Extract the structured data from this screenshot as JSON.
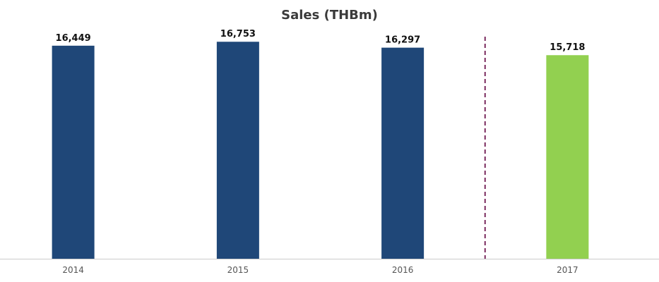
{
  "chart_data": {
    "type": "bar",
    "title": "Sales (THBm)",
    "xlabel": "",
    "ylabel": "",
    "categories": [
      "2014",
      "2015",
      "2016",
      "2017"
    ],
    "values": [
      16449,
      16753,
      16297,
      15718
    ],
    "value_labels": [
      "16,449",
      "16,753",
      "16,297",
      "15,718"
    ],
    "ylim": [
      0,
      17800
    ],
    "grid": false,
    "legend": "none",
    "divider_between": [
      "2016",
      "2017"
    ],
    "colors": {
      "actual": "#1f4778",
      "forecast": "#92d050",
      "divider": "#7a2a5e",
      "baseline": "#cccccc"
    },
    "bar_colors": [
      "#1f4778",
      "#1f4778",
      "#1f4778",
      "#92d050"
    ]
  }
}
